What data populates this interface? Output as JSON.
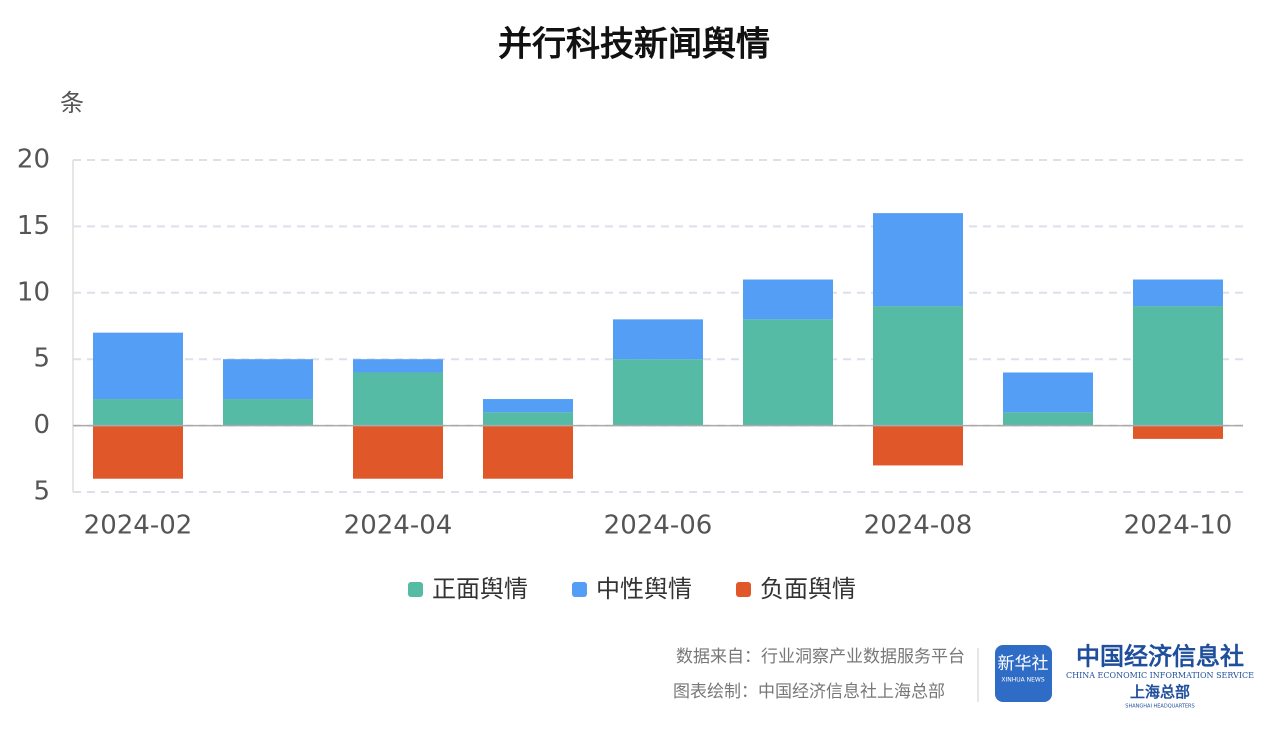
{
  "chart_data": {
    "type": "bar",
    "stacked": true,
    "title": "并行科技新闻舆情",
    "y_label": "条",
    "categories": [
      "2024-02",
      null,
      "2024-04",
      null,
      "2024-06",
      null,
      "2024-08",
      null,
      "2024-10"
    ],
    "series": [
      {
        "name": "正面舆情",
        "color": "#55bba5",
        "values": [
          2,
          2,
          4,
          1,
          5,
          8,
          9,
          1,
          9
        ]
      },
      {
        "name": "中性舆情",
        "color": "#559ef5",
        "values": [
          5,
          3,
          1,
          1,
          3,
          3,
          7,
          3,
          2
        ]
      },
      {
        "name": "负面舆情",
        "color": "#e0572a",
        "values": [
          -4,
          0,
          -4,
          -4,
          0,
          0,
          -3,
          0,
          -1
        ]
      }
    ],
    "ylim": [
      -5,
      20
    ],
    "yticks": [
      {
        "value": -5,
        "label": "5"
      },
      0,
      5,
      10,
      15,
      20
    ],
    "grid": true,
    "legend": "bottom"
  },
  "footer": {
    "source": "数据来自：行业洞察产业数据服务平台",
    "credit": "图表绘制：中国经济信息社上海总部",
    "logo_cn": "新华社",
    "logo_en": "XINHUA NEWS",
    "org_cn": "中国经济信息社",
    "org_en": "CHINA ECONOMIC INFORMATION SERVICE",
    "branch_cn": "上海总部",
    "branch_en": "SHANGHAI HEADQUARTERS"
  }
}
